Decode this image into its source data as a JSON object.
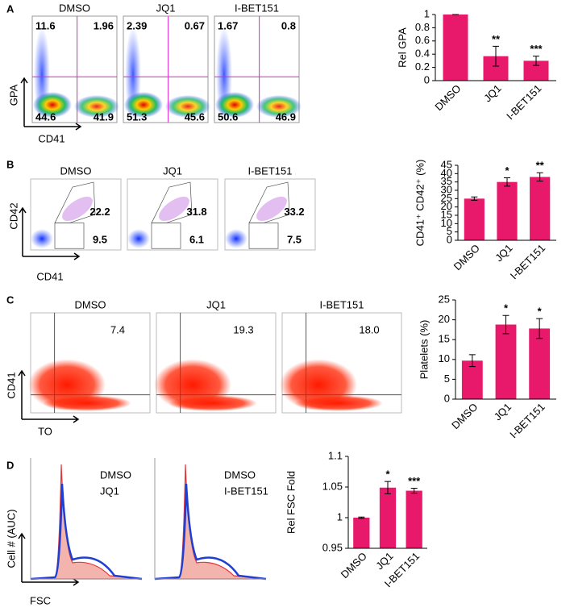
{
  "flow_panels": [
    {
      "letter": "A",
      "y_label": "GPA",
      "x_label": "CD41",
      "plots": [
        {
          "title": "DMSO",
          "labels": [
            "11.6",
            "1.96",
            "44.6",
            "41.9"
          ]
        },
        {
          "title": "JQ1",
          "labels": [
            "2.39",
            "0.67",
            "51.3",
            "45.6"
          ]
        },
        {
          "title": "I-BET151",
          "labels": [
            "1.67",
            "0.8",
            "50.6",
            "46.9"
          ]
        }
      ]
    },
    {
      "letter": "B",
      "y_label": "CD42",
      "x_label": "CD41",
      "plots": [
        {
          "title": "DMSO",
          "labels": [
            "22.2",
            "9.5"
          ]
        },
        {
          "title": "JQ1",
          "labels": [
            "31.8",
            "6.1"
          ]
        },
        {
          "title": "I-BET151",
          "labels": [
            "33.2",
            "7.5"
          ]
        }
      ]
    },
    {
      "letter": "C",
      "y_label": "CD41",
      "x_label": "TO",
      "plots": [
        {
          "title": "DMSO",
          "labels": [
            "7.4"
          ]
        },
        {
          "title": "JQ1",
          "labels": [
            "19.3"
          ]
        },
        {
          "title": "I-BET151",
          "labels": [
            "18.0"
          ]
        }
      ]
    },
    {
      "letter": "D",
      "y_label": "Cell # (AUC)",
      "x_label": "FSC",
      "legend_colors": [
        "#e8343c",
        "#1f3fd0"
      ],
      "plots": [
        {
          "labels": [
            "DMSO",
            "JQ1"
          ]
        },
        {
          "labels": [
            "DMSO",
            "I-BET151"
          ]
        }
      ]
    }
  ],
  "chart_data": [
    {
      "type": "bar",
      "y_label": "Rel GPA",
      "categories": [
        "DMSO",
        "JQ1",
        "I-BET151"
      ],
      "values": [
        1,
        0.37,
        0.3
      ],
      "errors": [
        0,
        0.15,
        0.07
      ],
      "sig_labels": [
        null,
        "**",
        "***"
      ],
      "color": "#e8186a",
      "ylim": [
        0,
        1
      ],
      "yticks": [
        0,
        0.2,
        0.4,
        0.6,
        0.8,
        1
      ]
    },
    {
      "type": "bar",
      "y_label": "CD41⁺ CD42⁺ (%)",
      "categories": [
        "DMSO",
        "JQ1",
        "I-BET151"
      ],
      "values": [
        25,
        35,
        38
      ],
      "errors": [
        1,
        2.5,
        2.5
      ],
      "sig_labels": [
        null,
        "*",
        "**"
      ],
      "color": "#e8186a",
      "ylim": [
        0,
        45
      ],
      "yticks": [
        0,
        5,
        10,
        15,
        20,
        25,
        30,
        35,
        40,
        45
      ]
    },
    {
      "type": "bar",
      "y_label": "Platelets (%)",
      "categories": [
        "DMSO",
        "JQ1",
        "I-BET151"
      ],
      "values": [
        9.7,
        18.8,
        17.8
      ],
      "errors": [
        1.5,
        2.3,
        2.5
      ],
      "sig_labels": [
        null,
        "*",
        "*"
      ],
      "color": "#e8186a",
      "ylim": [
        0,
        25
      ],
      "yticks": [
        0,
        5,
        10,
        15,
        20,
        25
      ]
    },
    {
      "type": "bar",
      "y_label": "Rel FSC Fold",
      "categories": [
        "DMSO",
        "JQ1",
        "I-BET151"
      ],
      "values": [
        1,
        1.049,
        1.044
      ],
      "errors": [
        0.001,
        0.01,
        0.004
      ],
      "sig_labels": [
        null,
        "*",
        "***"
      ],
      "color": "#e8186a",
      "ylim": [
        0.95,
        1.1
      ],
      "yticks": [
        0.95,
        1,
        1.05,
        1.1
      ]
    }
  ]
}
